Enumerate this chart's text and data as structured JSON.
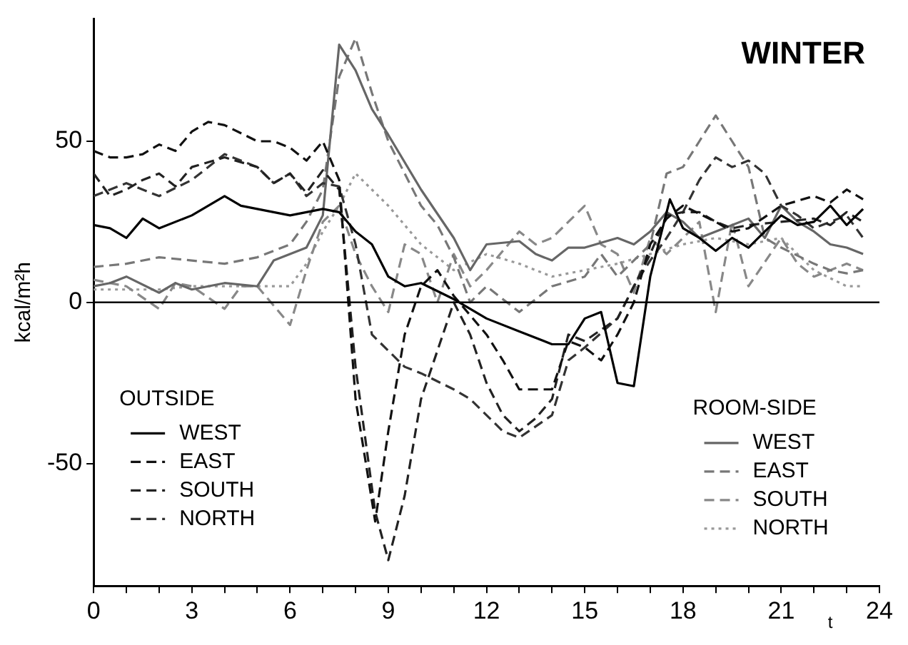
{
  "chart_data": {
    "type": "line",
    "title": "WINTER",
    "xlabel": "t",
    "ylabel": "kcal/m²h",
    "xlim": [
      0,
      24
    ],
    "xticks": [
      0,
      {
        "value": 1,
        "label": null
      },
      {
        "value": 2,
        "label": null
      },
      3,
      {
        "value": 4,
        "label": null
      },
      {
        "value": 5,
        "label": null
      },
      6,
      {
        "value": 7,
        "label": null
      },
      {
        "value": 8,
        "label": null
      },
      9,
      {
        "value": 10,
        "label": null
      },
      {
        "value": 11,
        "label": null
      },
      12,
      {
        "value": 13,
        "label": null
      },
      {
        "value": 14,
        "label": null
      },
      15,
      {
        "value": 16,
        "label": null
      },
      {
        "value": 17,
        "label": null
      },
      18,
      {
        "value": 19,
        "label": null
      },
      {
        "value": 20,
        "label": null
      },
      21,
      {
        "value": 22,
        "label": null
      },
      {
        "value": 23,
        "label": null
      },
      24
    ],
    "ylim": [
      -88,
      88
    ],
    "yticks": [
      -50,
      0,
      50
    ],
    "grid": false,
    "marker": "none",
    "legend": "bottom",
    "annotations": [
      "OUTSIDE",
      "ROOM-SIDE"
    ],
    "ref_lines": [
      {
        "axis": "y",
        "value": 0,
        "color": "#000000"
      }
    ],
    "series": [
      {
        "name": "WEST",
        "color": "#000000",
        "line_style": "solid",
        "x": [
          0,
          0.5,
          1,
          1.5,
          2,
          3,
          4,
          4.5,
          5,
          6,
          7,
          7.5,
          8,
          8.5,
          9,
          9.5,
          10,
          11,
          12,
          13,
          14,
          14.5,
          15,
          15.5,
          16,
          16.5,
          17,
          17.6,
          18,
          18.5,
          19,
          19.5,
          20,
          20.5,
          21,
          21.5,
          22,
          22.5,
          23,
          23.5
        ],
        "values": [
          24,
          23,
          20,
          26,
          23,
          27,
          33,
          30,
          29,
          27,
          29,
          28,
          22,
          18,
          8,
          5,
          6,
          1,
          -5,
          -9,
          -13,
          -13,
          -5,
          -3,
          -25,
          -26,
          8,
          32,
          23,
          20,
          16,
          20,
          17,
          22,
          27,
          24,
          25,
          30,
          24,
          29
        ]
      },
      {
        "name": "EAST",
        "color": "#111111",
        "line_style": "dashed",
        "x": [
          0,
          0.5,
          1,
          1.5,
          2,
          2.5,
          3,
          3.5,
          4,
          5,
          5.5,
          6,
          6.5,
          7,
          7.5,
          8,
          8.6,
          9,
          9.5,
          10,
          10.5,
          11,
          12,
          12.5,
          13,
          14,
          14.5,
          15,
          15.5,
          16,
          16.5,
          17,
          17.5,
          18,
          19,
          19.5,
          20,
          21,
          22,
          22.5,
          23,
          23.5
        ],
        "values": [
          47,
          45,
          45,
          46,
          49,
          47,
          53,
          56,
          55,
          50,
          50,
          48,
          44,
          50,
          38,
          -30,
          -68,
          -40,
          -10,
          5,
          10,
          2,
          -10,
          -18,
          -27,
          -27,
          -12,
          -14,
          -18,
          -10,
          0,
          18,
          26,
          30,
          25,
          22,
          23,
          30,
          33,
          31,
          35,
          32
        ]
      },
      {
        "name": "SOUTH",
        "color": "#222222",
        "line_style": "dashed",
        "x": [
          0,
          0.5,
          1,
          1.5,
          2,
          2.5,
          3,
          4,
          5,
          5.5,
          6,
          6.5,
          7,
          7.5,
          8,
          8.6,
          9,
          9.5,
          10,
          10.5,
          11,
          11.5,
          12,
          12.5,
          13,
          13.5,
          14,
          14.5,
          15,
          16,
          17,
          17.5,
          18,
          18.5,
          19,
          19.5,
          20,
          21,
          22,
          22.5,
          23,
          23.5
        ],
        "values": [
          40,
          33,
          35,
          38,
          40,
          36,
          42,
          45,
          42,
          37,
          40,
          34,
          41,
          35,
          -20,
          -65,
          -80,
          -60,
          -30,
          -15,
          0,
          -10,
          -25,
          -35,
          -40,
          -36,
          -30,
          -10,
          -12,
          -5,
          15,
          27,
          28,
          28,
          25,
          23,
          24,
          25,
          26,
          24,
          28,
          25
        ]
      },
      {
        "name": "NORTH",
        "color": "#333333",
        "line_style": "dashed",
        "x": [
          0,
          1,
          2,
          3,
          4,
          5,
          5.5,
          6,
          6.5,
          7,
          7.5,
          8,
          8.5,
          9,
          9.5,
          10,
          11,
          11.5,
          12,
          12.5,
          13,
          14,
          14.5,
          15,
          16,
          16.5,
          17,
          17.5,
          18,
          18.5,
          19,
          19.5,
          20,
          20.5,
          21,
          21.5,
          22,
          22.5,
          23,
          23.5
        ],
        "values": [
          33,
          37,
          33,
          38,
          46,
          42,
          37,
          40,
          33,
          37,
          36,
          18,
          -10,
          -15,
          -20,
          -22,
          -27,
          -30,
          -35,
          -40,
          -42,
          -35,
          -18,
          -14,
          -5,
          5,
          13,
          20,
          28,
          38,
          45,
          42,
          44,
          40,
          30,
          27,
          23,
          25,
          27,
          20
        ]
      },
      {
        "name": "WEST",
        "color": "#666666",
        "line_style": "solid",
        "x": [
          0,
          0.5,
          1,
          2,
          2.5,
          3,
          4,
          5,
          5.5,
          6,
          6.5,
          7,
          7.5,
          8,
          8.5,
          9,
          10,
          11,
          11.5,
          12,
          13,
          13.5,
          14,
          14.5,
          15,
          16,
          16.5,
          17,
          17.5,
          18,
          18.5,
          19,
          20,
          20.5,
          21,
          21.5,
          22,
          22.5,
          23,
          23.5
        ],
        "values": [
          5,
          6,
          8,
          3,
          6,
          4,
          6,
          5,
          13,
          15,
          17,
          27,
          80,
          72,
          60,
          52,
          35,
          20,
          10,
          18,
          19,
          15,
          13,
          17,
          17,
          20,
          18,
          22,
          28,
          25,
          20,
          22,
          26,
          20,
          30,
          25,
          22,
          18,
          17,
          15
        ]
      },
      {
        "name": "EAST",
        "color": "#777777",
        "line_style": "dashed",
        "x": [
          0,
          1,
          2,
          3,
          4,
          5,
          6,
          6.5,
          7,
          7.5,
          8,
          8.5,
          9,
          9.5,
          10,
          10.5,
          11,
          11.5,
          12,
          13,
          14,
          15,
          15.5,
          16,
          17,
          17.5,
          18,
          18.5,
          19,
          19.5,
          20,
          20.5,
          21,
          22,
          22.5,
          23,
          23.5
        ],
        "values": [
          11,
          12,
          14,
          13,
          12,
          14,
          18,
          25,
          35,
          70,
          82,
          65,
          50,
          40,
          30,
          24,
          14,
          0,
          5,
          -3,
          5,
          8,
          15,
          8,
          18,
          40,
          42,
          50,
          58,
          50,
          42,
          20,
          17,
          12,
          10,
          9,
          10
        ]
      },
      {
        "name": "SOUTH",
        "color": "#888888",
        "line_style": "dashed",
        "x": [
          0,
          1,
          2,
          2.5,
          3,
          4,
          4.5,
          5,
          6,
          6.5,
          7,
          7.5,
          8,
          8.5,
          9,
          9.5,
          10,
          10.5,
          11,
          11.5,
          12,
          13,
          13.5,
          14,
          15,
          15.5,
          16,
          16.5,
          17,
          17.5,
          18,
          18.5,
          19,
          19.5,
          20,
          21,
          21.5,
          22,
          22.5,
          23,
          23.5
        ],
        "values": [
          7,
          5,
          -2,
          6,
          5,
          -2,
          5,
          5,
          -7,
          10,
          25,
          30,
          15,
          5,
          -3,
          18,
          15,
          0,
          15,
          5,
          10,
          22,
          18,
          20,
          30,
          18,
          15,
          3,
          20,
          15,
          20,
          25,
          -3,
          25,
          5,
          20,
          12,
          8,
          10,
          12,
          10
        ]
      },
      {
        "name": "NORTH",
        "color": "#999999",
        "line_style": "dotted",
        "x": [
          0,
          1,
          2,
          3,
          4,
          5,
          6,
          6.5,
          7,
          7.5,
          8,
          8.5,
          9,
          10,
          11,
          12,
          13,
          14,
          15,
          16,
          17,
          18,
          19,
          20,
          21,
          22,
          23,
          23.5
        ],
        "values": [
          4,
          4,
          4,
          5,
          5,
          5,
          5,
          12,
          22,
          30,
          40,
          35,
          30,
          18,
          10,
          15,
          12,
          8,
          10,
          12,
          15,
          18,
          20,
          18,
          20,
          10,
          5,
          5
        ]
      }
    ]
  }
}
